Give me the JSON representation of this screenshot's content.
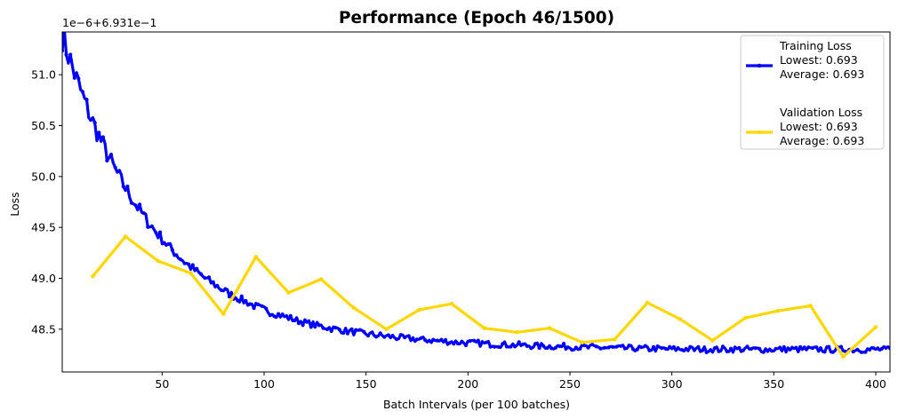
{
  "chart_data": {
    "type": "line",
    "title": "Performance (Epoch 46/1500)",
    "xlabel": "Batch Intervals (per 100 batches)",
    "ylabel": "Loss",
    "offset_text": "1e−6+6.931e−1",
    "xlim": [
      1,
      407
    ],
    "ylim": [
      48.08,
      51.42
    ],
    "x_ticks": [
      50,
      100,
      150,
      200,
      250,
      300,
      350,
      400
    ],
    "x_tick_labels": [
      "50",
      "100",
      "150",
      "200",
      "250",
      "300",
      "350",
      "400"
    ],
    "y_ticks": [
      48.5,
      49.0,
      49.5,
      50.0,
      50.5,
      51.0
    ],
    "y_tick_labels": [
      "48.5",
      "49.0",
      "49.5",
      "50.0",
      "50.5",
      "51.0"
    ],
    "grid": false,
    "legend_position": "top-right",
    "series": [
      {
        "name": "Training Loss",
        "legend_lines": [
          "Training Loss",
          "Lowest: 0.693",
          "Average: 0.693"
        ],
        "color": "#0000ff",
        "curve": {
          "x_start": 1,
          "x_end": 407,
          "y_asymptote": 48.3,
          "y_amplitude": 3.0,
          "decay_interval": 45
        },
        "keypoints": [
          {
            "x": 1,
            "y": 51.25
          },
          {
            "x": 3,
            "y": 51.28
          },
          {
            "x": 5,
            "y": 51.0
          },
          {
            "x": 8,
            "y": 50.75
          },
          {
            "x": 10,
            "y": 50.5
          },
          {
            "x": 12,
            "y": 50.25
          },
          {
            "x": 15,
            "y": 50.1
          },
          {
            "x": 20,
            "y": 49.8
          },
          {
            "x": 25,
            "y": 49.6
          },
          {
            "x": 30,
            "y": 49.45
          },
          {
            "x": 40,
            "y": 49.3
          },
          {
            "x": 50,
            "y": 49.15
          },
          {
            "x": 60,
            "y": 49.1
          },
          {
            "x": 75,
            "y": 49.05
          },
          {
            "x": 100,
            "y": 48.95
          },
          {
            "x": 125,
            "y": 48.87
          },
          {
            "x": 150,
            "y": 48.8
          },
          {
            "x": 175,
            "y": 48.73
          },
          {
            "x": 200,
            "y": 48.7
          },
          {
            "x": 225,
            "y": 48.66
          },
          {
            "x": 250,
            "y": 48.63
          },
          {
            "x": 275,
            "y": 48.6
          },
          {
            "x": 300,
            "y": 48.57
          },
          {
            "x": 325,
            "y": 48.55
          },
          {
            "x": 350,
            "y": 48.53
          },
          {
            "x": 375,
            "y": 48.51
          },
          {
            "x": 400,
            "y": 48.49
          },
          {
            "x": 407,
            "y": 48.47
          }
        ]
      },
      {
        "name": "Validation Loss",
        "legend_lines": [
          "Validation Loss",
          "Lowest: 0.693",
          "Average: 0.693"
        ],
        "color": "#ffd700",
        "x": [
          16,
          32,
          48,
          64,
          80,
          96,
          112,
          128,
          144,
          160,
          176,
          192,
          208,
          224,
          240,
          256,
          272,
          288,
          304,
          320,
          336,
          352,
          368,
          384,
          400
        ],
        "y": [
          49.02,
          49.41,
          49.17,
          49.05,
          48.65,
          49.21,
          48.86,
          48.99,
          48.71,
          48.5,
          48.69,
          48.75,
          48.51,
          48.47,
          48.51,
          48.37,
          48.4,
          48.76,
          48.6,
          48.39,
          48.61,
          48.68,
          48.73,
          48.23,
          48.52
        ]
      }
    ]
  }
}
